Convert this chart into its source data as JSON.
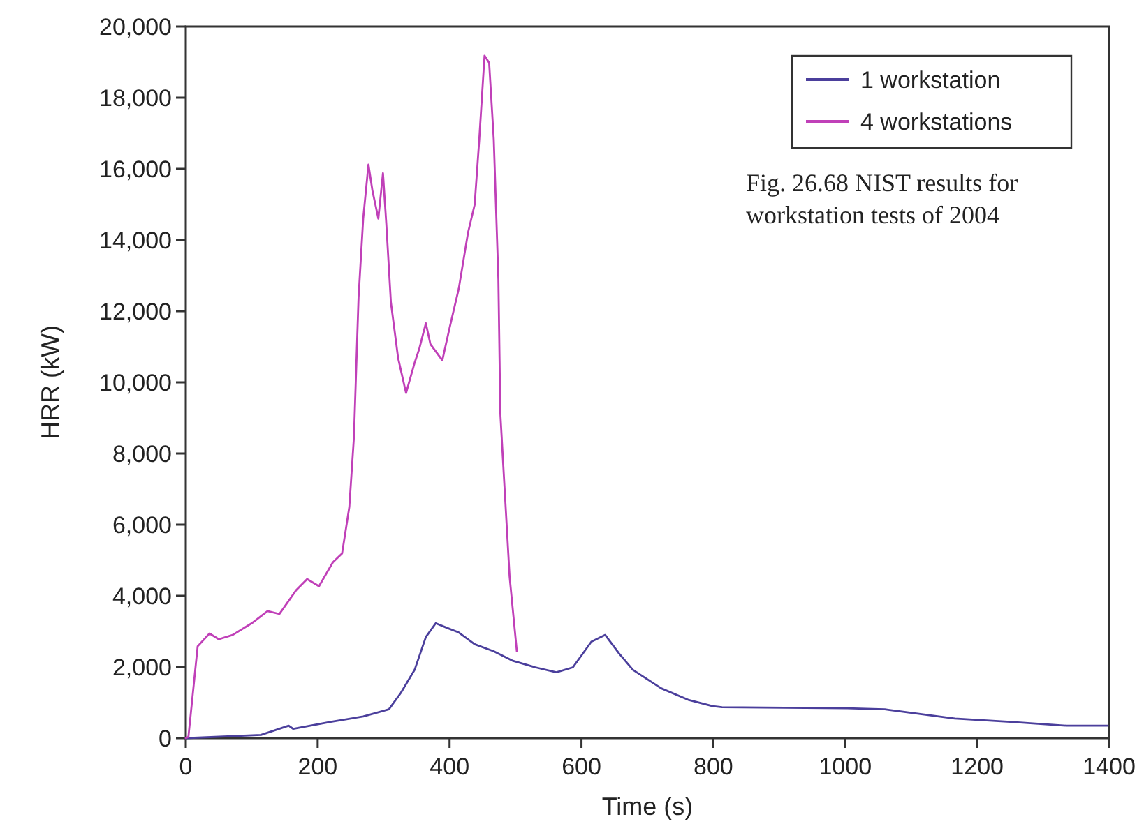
{
  "chart_data": {
    "type": "line",
    "xlabel": "Time (s)",
    "ylabel": "HRR (kW)",
    "xlim": [
      0,
      1400
    ],
    "xticks": [
      0,
      200,
      400,
      600,
      800,
      1000,
      1200,
      1400
    ],
    "ylim": [
      0,
      20000
    ],
    "yticks": [
      {
        "value": 0,
        "label": "0"
      },
      {
        "value": 2000,
        "label": "2,000"
      },
      {
        "value": 4000,
        "label": "4,000"
      },
      {
        "value": 6000,
        "label": "6,000"
      },
      {
        "value": 8000,
        "label": "8,000"
      },
      {
        "value": 10000,
        "label": "10,000"
      },
      {
        "value": 12000,
        "label": "12,000"
      },
      {
        "value": 14000,
        "label": "14,000"
      },
      {
        "value": 16000,
        "label": "16,000"
      },
      {
        "value": 18000,
        "label": "18,000"
      },
      {
        "value": 20000,
        "label": "20,000"
      }
    ],
    "legend": "top right",
    "grid": false,
    "line_style": "solid",
    "marker": "none",
    "annotations": [
      "Fig. 26.68   NIST results for workstation tests of 2004"
    ],
    "series": [
      {
        "name": "1 workstation",
        "color": "#4b3f9c",
        "x": [
          0,
          114,
          156,
          163,
          220,
          269,
          308,
          326,
          347,
          364,
          379,
          396,
          414,
          438,
          467,
          495,
          530,
          562,
          587,
          615,
          636,
          657,
          678,
          721,
          763,
          799,
          813,
          1003,
          1060,
          1166,
          1250,
          1335,
          1398
        ],
        "values": [
          0,
          90,
          350,
          260,
          460,
          610,
          810,
          1270,
          1920,
          2840,
          3230,
          3100,
          2970,
          2640,
          2440,
          2180,
          1990,
          1850,
          1990,
          2710,
          2900,
          2380,
          1920,
          1400,
          1070,
          900,
          870,
          840,
          810,
          550,
          460,
          350,
          350
        ]
      },
      {
        "name": "4 workstations",
        "color": "#c040b8",
        "x": [
          0,
          4,
          18,
          36,
          50,
          71,
          100,
          124,
          142,
          167,
          184,
          202,
          223,
          237,
          248,
          255,
          262,
          269,
          277,
          283,
          292,
          299,
          304,
          311,
          322,
          334,
          347,
          354,
          364,
          371,
          389,
          400,
          414,
          428,
          438,
          445,
          453,
          460,
          467,
          474,
          477,
          481,
          491,
          502
        ],
        "values": [
          0,
          40,
          2580,
          2940,
          2780,
          2900,
          3230,
          3570,
          3490,
          4150,
          4470,
          4270,
          4940,
          5190,
          6500,
          8470,
          12390,
          14600,
          16120,
          15390,
          14600,
          15880,
          14470,
          12250,
          10680,
          9700,
          10550,
          10940,
          11660,
          11070,
          10620,
          11530,
          12640,
          14210,
          14990,
          16820,
          19180,
          18980,
          16820,
          12900,
          9110,
          7800,
          4540,
          2440
        ]
      }
    ]
  }
}
